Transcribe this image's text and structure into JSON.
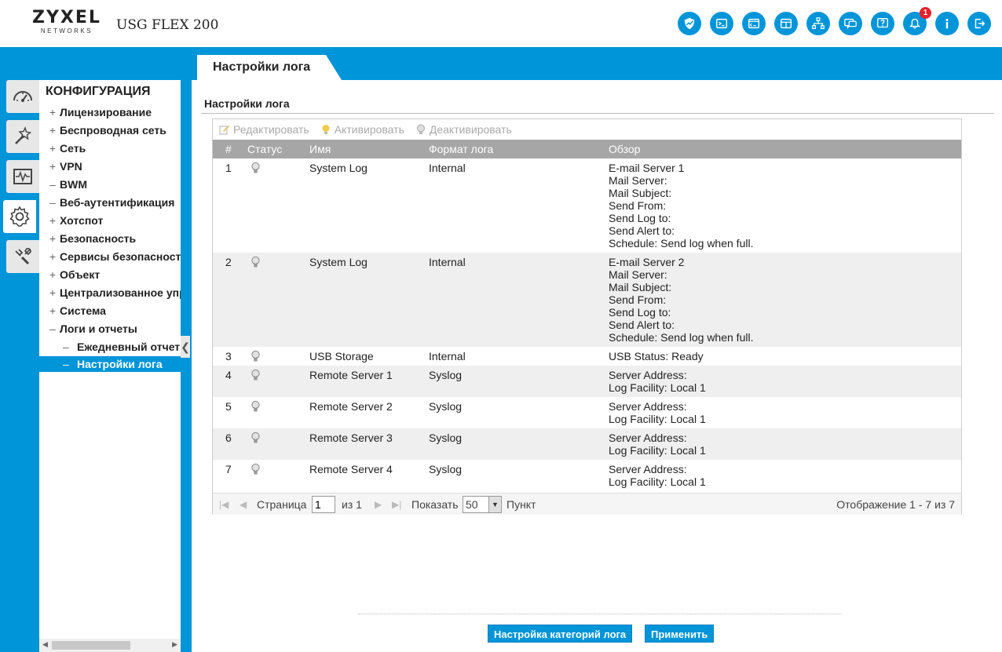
{
  "header": {
    "brand": "ZYXEL",
    "brand_sub": "NETWORKS",
    "model": "USG FLEX 200",
    "icons": [
      "shield-icon",
      "console-icon",
      "cli-icon",
      "window-icon",
      "network-map-icon",
      "chat-icon",
      "help-icon",
      "notification-icon",
      "info-icon",
      "logout-icon"
    ],
    "notification_count": "1"
  },
  "page_tab": "Настройки лога",
  "sidebar": {
    "title": "КОНФИГУРАЦИЯ",
    "items": [
      {
        "sign": "+",
        "label": "Лицензирование"
      },
      {
        "sign": "+",
        "label": "Беспроводная сеть"
      },
      {
        "sign": "+",
        "label": "Сеть"
      },
      {
        "sign": "+",
        "label": "VPN"
      },
      {
        "sign": "–",
        "label": "BWM"
      },
      {
        "sign": "–",
        "label": "Веб-аутентификация"
      },
      {
        "sign": "+",
        "label": "Хотспот"
      },
      {
        "sign": "+",
        "label": "Безопасность"
      },
      {
        "sign": "+",
        "label": "Сервисы безопасности"
      },
      {
        "sign": "+",
        "label": "Объект"
      },
      {
        "sign": "+",
        "label": "Централизованное управление"
      },
      {
        "sign": "+",
        "label": "Система"
      },
      {
        "sign": "–",
        "label": "Логи и отчеты"
      }
    ],
    "sub_items": [
      {
        "label": "Ежедневный отчет"
      }
    ],
    "selected": "Настройки лога"
  },
  "main": {
    "section_title": "Настройки лога",
    "toolbar": {
      "edit": "Редактировать",
      "activate": "Активировать",
      "deactivate": "Деактивировать"
    },
    "columns": [
      "#",
      "Статус",
      "Имя",
      "Формат лога",
      "Обзор"
    ],
    "rows": [
      {
        "num": "1",
        "name": "System Log",
        "format": "Internal",
        "overview": [
          "E-mail Server 1",
          "Mail Server:",
          "Mail Subject:",
          "Send From:",
          "Send Log to:",
          "Send Alert to:",
          "Schedule: Send log when full."
        ]
      },
      {
        "num": "2",
        "name": "System Log",
        "format": "Internal",
        "overview": [
          "E-mail Server 2",
          "Mail Server:",
          "Mail Subject:",
          "Send From:",
          "Send Log to:",
          "Send Alert to:",
          "Schedule: Send log when full."
        ]
      },
      {
        "num": "3",
        "name": "USB Storage",
        "format": "Internal",
        "overview": [
          "USB Status: Ready"
        ]
      },
      {
        "num": "4",
        "name": "Remote Server 1",
        "format": "Syslog",
        "overview": [
          "Server Address:",
          "Log Facility: Local 1"
        ]
      },
      {
        "num": "5",
        "name": "Remote Server 2",
        "format": "Syslog",
        "overview": [
          "Server Address:",
          "Log Facility: Local 1"
        ]
      },
      {
        "num": "6",
        "name": "Remote Server 3",
        "format": "Syslog",
        "overview": [
          "Server Address:",
          "Log Facility: Local 1"
        ]
      },
      {
        "num": "7",
        "name": "Remote Server 4",
        "format": "Syslog",
        "overview": [
          "Server Address:",
          "Log Facility: Local 1"
        ]
      }
    ],
    "pager": {
      "page_label": "Страница",
      "page_value": "1",
      "of_label": "из 1",
      "show_label": "Показать",
      "page_size": "50",
      "items_label": "Пункт",
      "display_text": "Отображение 1 - 7 из 7"
    }
  },
  "buttons": {
    "log_categories": "Настройка категорий лога",
    "apply": "Применить"
  },
  "colors": {
    "accent": "#0095d9",
    "header_row": "#a6a6a6",
    "alt_row": "#efefef",
    "badge": "#e5202c"
  }
}
